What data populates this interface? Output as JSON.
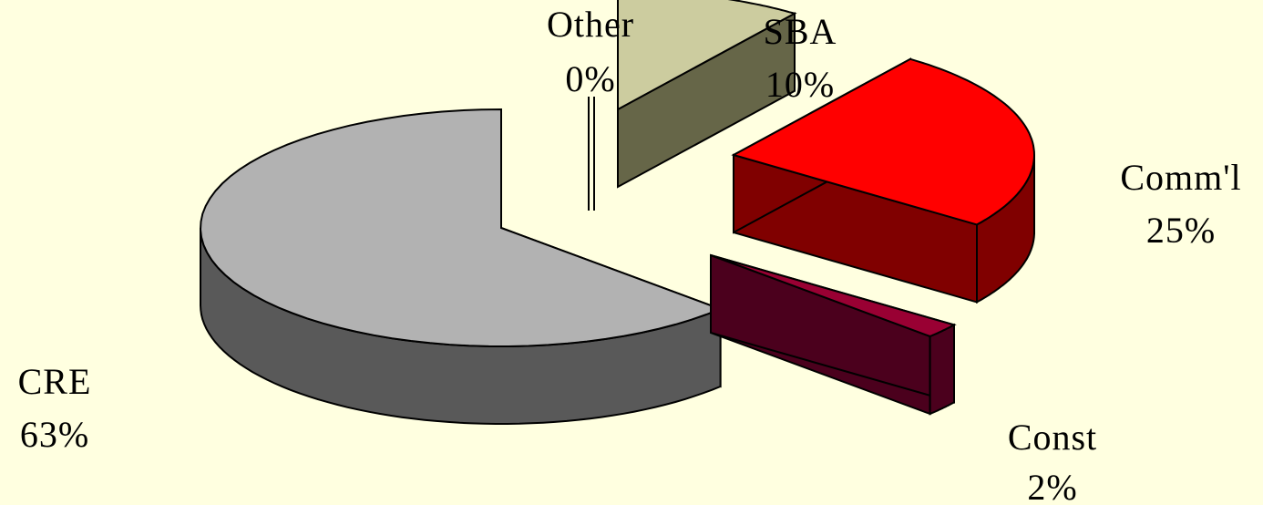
{
  "chart_data": {
    "type": "pie",
    "style": "3d-exploded",
    "slices": [
      {
        "label": "Other",
        "value": 0,
        "percent_label": "0%",
        "color": "#FFFFFF",
        "side_color": "#FFFFFF"
      },
      {
        "label": "SBA",
        "value": 10,
        "percent_label": "10%",
        "color": "#CCCC9F",
        "side_color": "#666648"
      },
      {
        "label": "Comm'l",
        "value": 25,
        "percent_label": "25%",
        "color": "#FF0000",
        "side_color": "#800000"
      },
      {
        "label": "Const",
        "value": 2,
        "percent_label": "2%",
        "color": "#990033",
        "side_color": "#4B001D"
      },
      {
        "label": "CRE",
        "value": 63,
        "percent_label": "63%",
        "color": "#B2B2B2",
        "side_color": "#595959"
      }
    ],
    "background": "#FFFFE0",
    "legend": "none"
  }
}
